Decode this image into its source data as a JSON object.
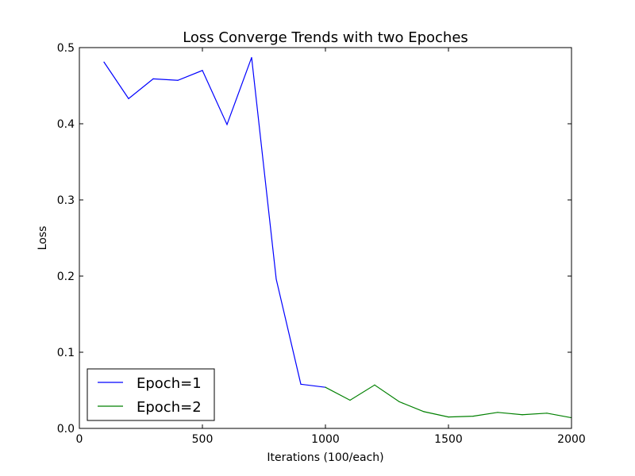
{
  "chart_data": {
    "type": "line",
    "title": "Loss Converge Trends with two Epoches",
    "xlabel": "Iterations (100/each)",
    "ylabel": "Loss",
    "xlim": [
      0,
      2000
    ],
    "ylim": [
      0.0,
      0.5
    ],
    "xticks": [
      0,
      500,
      1000,
      1500,
      2000
    ],
    "xtick_labels": [
      "0",
      "500",
      "1000",
      "1500",
      "2000"
    ],
    "yticks": [
      0.0,
      0.1,
      0.2,
      0.3,
      0.4,
      0.5
    ],
    "ytick_labels": [
      "0.0",
      "0.1",
      "0.2",
      "0.3",
      "0.4",
      "0.5"
    ],
    "grid": false,
    "legend_position": "bottom-left",
    "series": [
      {
        "name": "Epoch=1",
        "color": "#0000ff",
        "x": [
          100,
          200,
          300,
          400,
          500,
          600,
          700,
          800,
          900,
          1000
        ],
        "y": [
          0.481,
          0.433,
          0.459,
          0.457,
          0.47,
          0.399,
          0.487,
          0.196,
          0.058,
          0.054
        ]
      },
      {
        "name": "Epoch=2",
        "color": "#008000",
        "x": [
          1000,
          1100,
          1200,
          1300,
          1400,
          1500,
          1600,
          1700,
          1800,
          1900,
          2000
        ],
        "y": [
          0.054,
          0.037,
          0.057,
          0.035,
          0.022,
          0.015,
          0.016,
          0.021,
          0.018,
          0.02,
          0.014
        ]
      }
    ]
  }
}
